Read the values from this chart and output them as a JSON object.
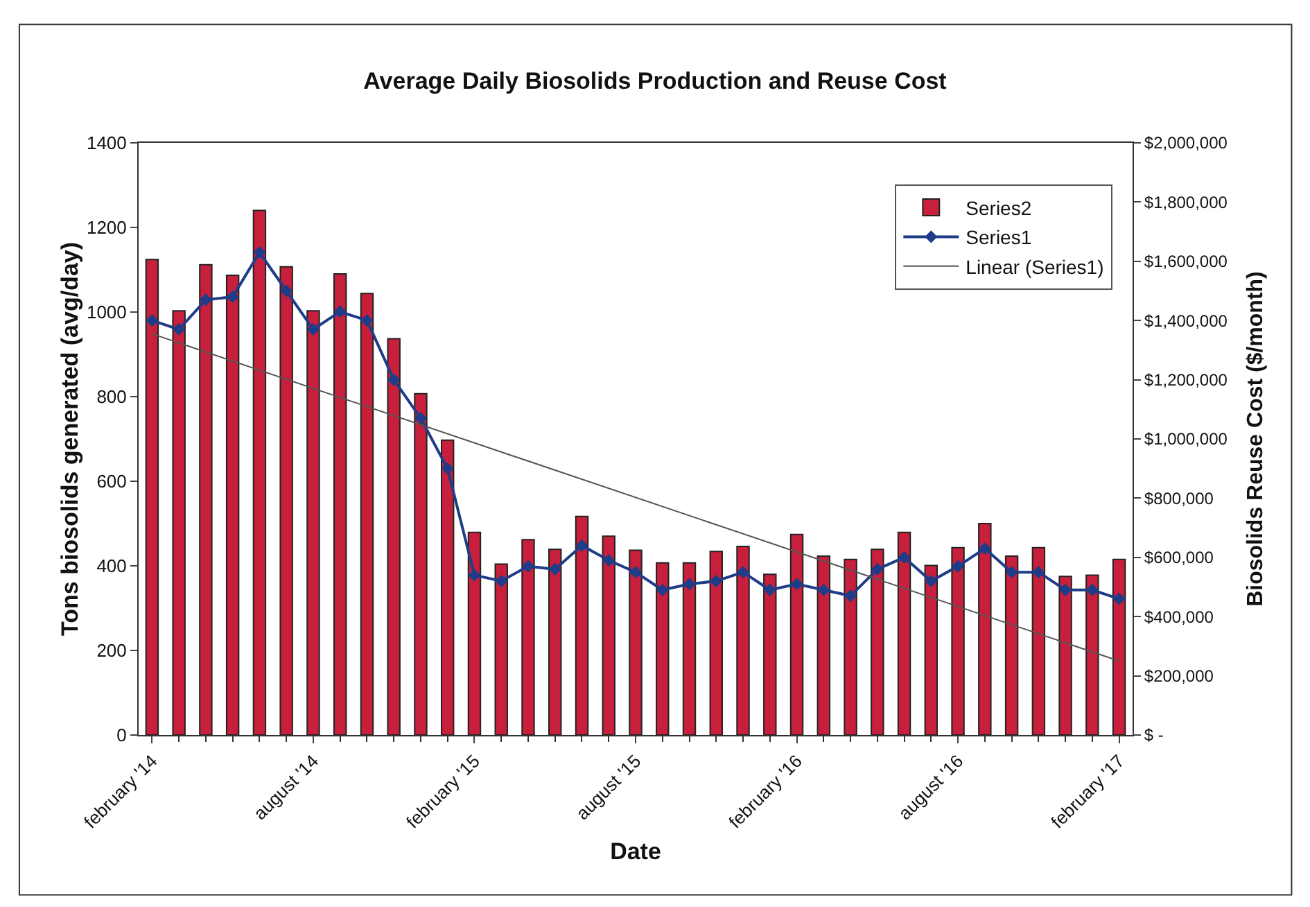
{
  "chart_data": {
    "type": "bar",
    "title": "Average Daily Biosolids Production and Reuse Cost",
    "xlabel": "Date",
    "ylabel": "Tons biosolids generated (avg/day)",
    "y2label": "Biosolids Reuse Cost ($/month)",
    "categories": [
      "february '14",
      null,
      null,
      null,
      null,
      null,
      "august '14",
      null,
      null,
      null,
      null,
      null,
      "february '15",
      null,
      null,
      null,
      null,
      null,
      "august '15",
      null,
      null,
      null,
      null,
      null,
      "february '16",
      null,
      null,
      null,
      null,
      null,
      "august '16",
      null,
      null,
      null,
      null,
      null,
      "february '17"
    ],
    "series": [
      {
        "name": "Series2",
        "color": "#c8203c",
        "values": [
          1124,
          1003,
          1112,
          1087,
          1240,
          1107,
          1003,
          1090,
          1044,
          937,
          807,
          697,
          479,
          404,
          462,
          439,
          517,
          470,
          437,
          407,
          407,
          434,
          446,
          380,
          474,
          423,
          415,
          439,
          479,
          401,
          443,
          500,
          423,
          443,
          375,
          378,
          415
        ]
      },
      {
        "name": "Series1",
        "type": "line",
        "axis": "y2",
        "color": "#1f3c88",
        "marker": "diamond",
        "values": [
          1400000,
          1370000,
          1470000,
          1480000,
          1630000,
          1500000,
          1370000,
          1430000,
          1400000,
          1200000,
          1070000,
          900000,
          540000,
          520000,
          570000,
          560000,
          640000,
          590000,
          550000,
          490000,
          510000,
          520000,
          550000,
          490000,
          510000,
          490000,
          470000,
          560000,
          600000,
          520000,
          570000,
          630000,
          550000,
          550000,
          490000,
          490000,
          460000
        ]
      },
      {
        "name": "Linear (Series1)",
        "type": "line",
        "axis": "y2",
        "color": "#555555",
        "marker": "none",
        "x": [
          "february '14",
          "february '17"
        ],
        "values": [
          1355000,
          250000
        ]
      }
    ],
    "ylim": [
      0,
      1400
    ],
    "yticks": [
      0,
      200,
      400,
      600,
      800,
      1000,
      1200,
      1400
    ],
    "y2lim": [
      0,
      2000000
    ],
    "y2ticks": [
      {
        "value": 0,
        "label": "$ -"
      },
      {
        "value": 200000,
        "label": "$200,000"
      },
      {
        "value": 400000,
        "label": "$400,000"
      },
      {
        "value": 600000,
        "label": "$600,000"
      },
      {
        "value": 800000,
        "label": "$800,000"
      },
      {
        "value": 1000000,
        "label": "$1,000,000"
      },
      {
        "value": 1200000,
        "label": "$1,200,000"
      },
      {
        "value": 1400000,
        "label": "$1,400,000"
      },
      {
        "value": 1600000,
        "label": "$1,600,000"
      },
      {
        "value": 1800000,
        "label": "$1,800,000"
      },
      {
        "value": 2000000,
        "label": "$2,000,000"
      }
    ],
    "grid": false,
    "legend": "top right"
  }
}
